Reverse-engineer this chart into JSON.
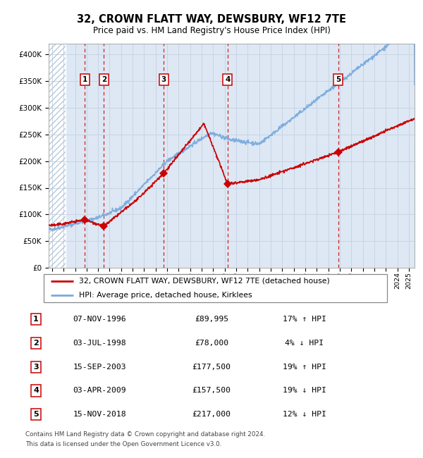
{
  "title": "32, CROWN FLATT WAY, DEWSBURY, WF12 7TE",
  "subtitle": "Price paid vs. HM Land Registry's House Price Index (HPI)",
  "legend_line1": "32, CROWN FLATT WAY, DEWSBURY, WF12 7TE (detached house)",
  "legend_line2": "HPI: Average price, detached house, Kirklees",
  "footer1": "Contains HM Land Registry data © Crown copyright and database right 2024.",
  "footer2": "This data is licensed under the Open Government Licence v3.0.",
  "sale_points": [
    {
      "label": "1",
      "date": "07-NOV-1996",
      "price": 89995,
      "year": 1996.85,
      "hpi_pct": "17% ↑ HPI"
    },
    {
      "label": "2",
      "date": "03-JUL-1998",
      "price": 78000,
      "year": 1998.5,
      "hpi_pct": "4% ↓ HPI"
    },
    {
      "label": "3",
      "date": "15-SEP-2003",
      "price": 177500,
      "year": 2003.71,
      "hpi_pct": "19% ↑ HPI"
    },
    {
      "label": "4",
      "date": "03-APR-2009",
      "price": 157500,
      "year": 2009.25,
      "hpi_pct": "19% ↓ HPI"
    },
    {
      "label": "5",
      "date": "15-NOV-2018",
      "price": 217000,
      "year": 2018.88,
      "hpi_pct": "12% ↓ HPI"
    }
  ],
  "hpi_color": "#7aaadd",
  "price_color": "#cc0000",
  "dot_color": "#cc0000",
  "vline_color": "#cc0000",
  "grid_color": "#c8d4e4",
  "bg_color": "#dde8f4",
  "hatch_color": "#b8c8d8",
  "ylim": [
    0,
    420000
  ],
  "yticks": [
    0,
    50000,
    100000,
    150000,
    200000,
    250000,
    300000,
    350000,
    400000
  ],
  "xlim_start": 1993.7,
  "xlim_end": 2025.5,
  "hatch_end": 1995.2
}
